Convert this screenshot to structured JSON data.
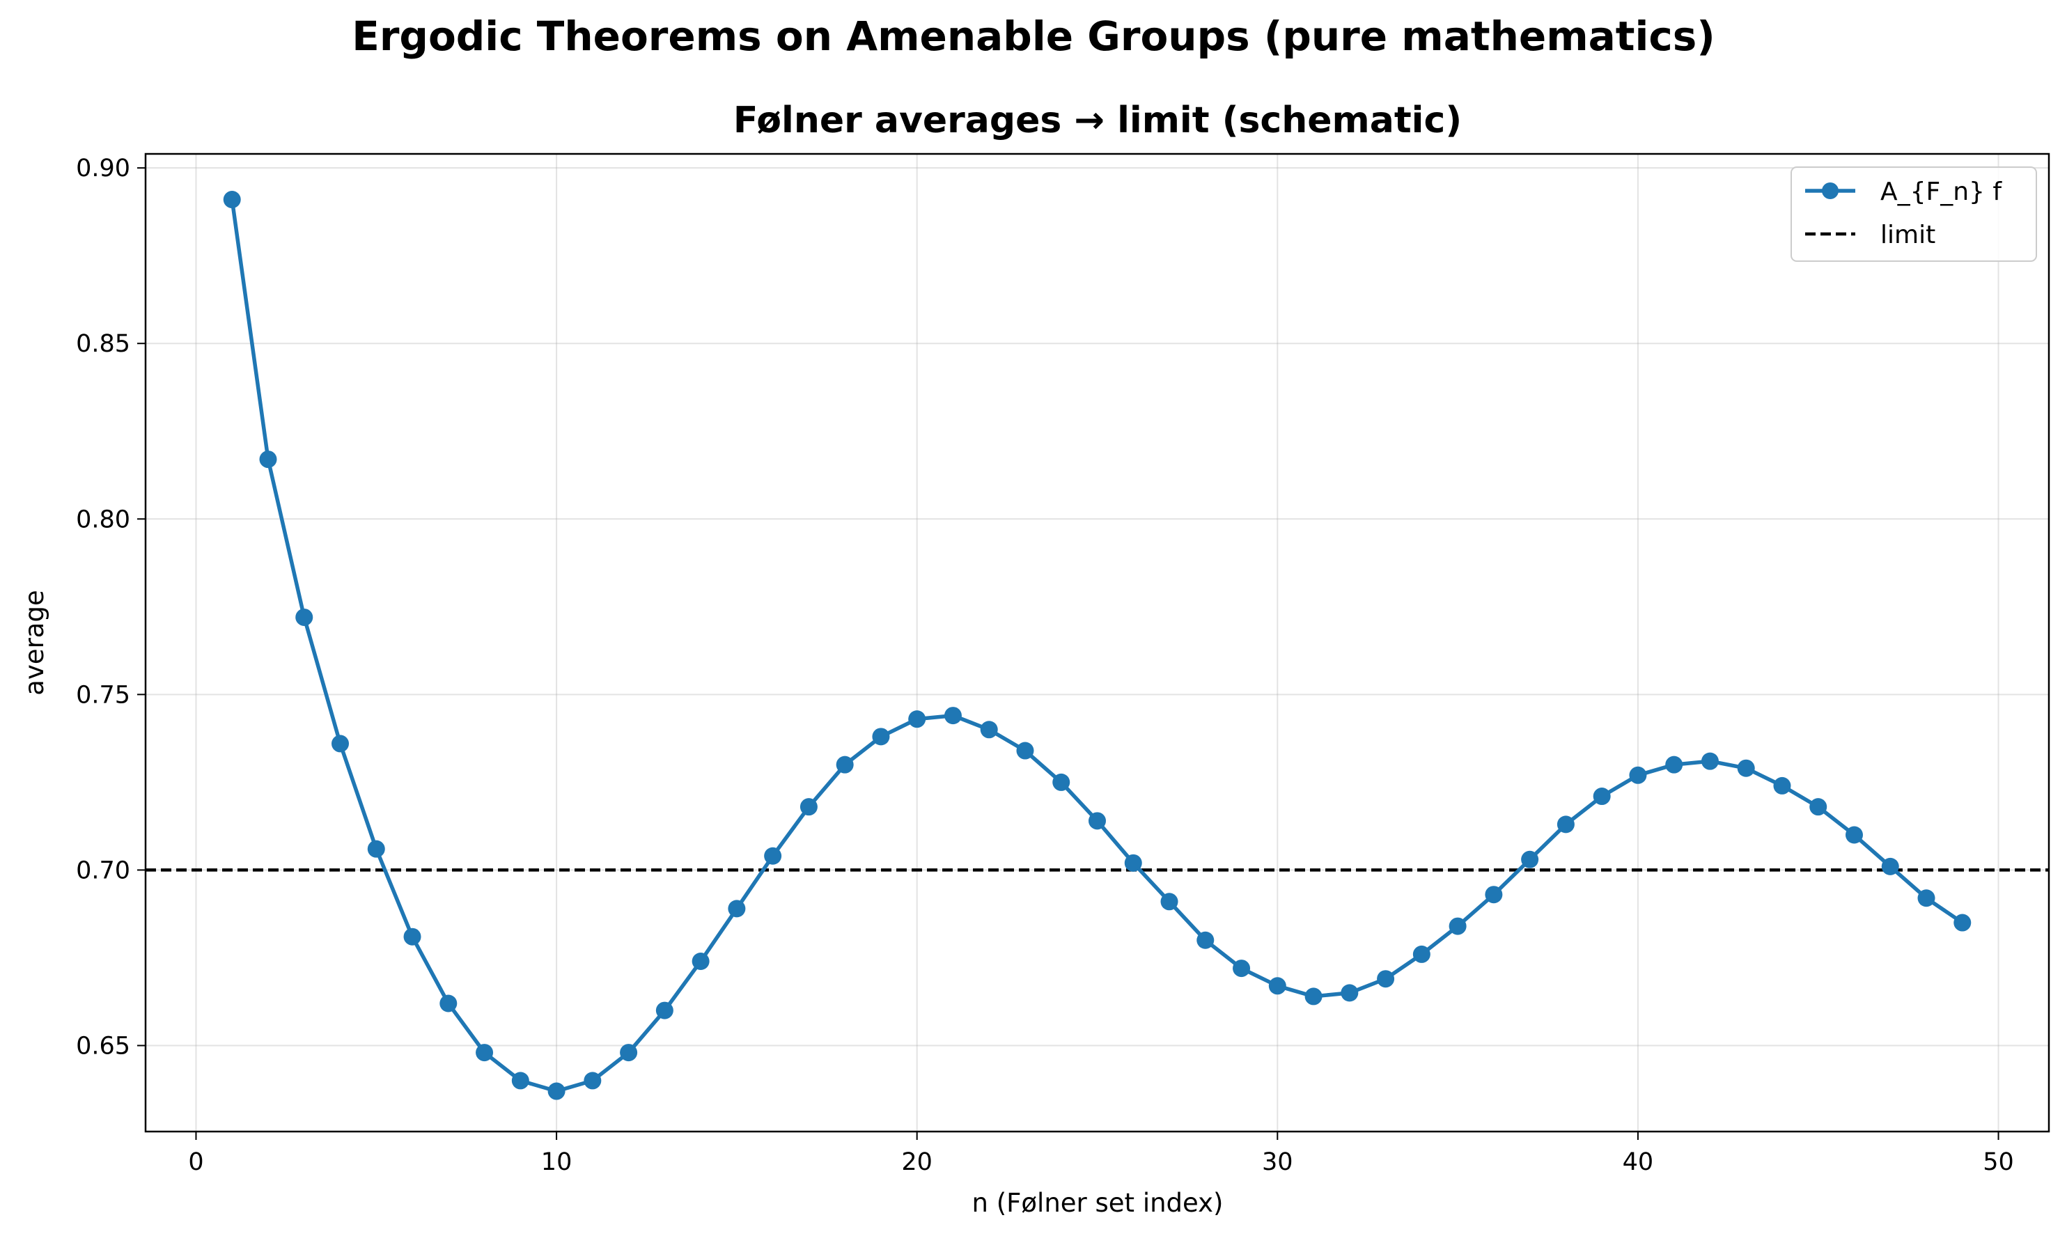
{
  "suptitle": "Ergodic Theorems on Amenable Groups (pure mathematics)",
  "chart_data": {
    "type": "line",
    "title": "Følner averages → limit (schematic)",
    "xlabel": "n (Følner set index)",
    "ylabel": "average",
    "xlim": [
      -1.4,
      51.4
    ],
    "ylim": [
      0.6255,
      0.904
    ],
    "x_ticks": [
      0,
      10,
      20,
      30,
      40,
      50
    ],
    "y_ticks": [
      0.65,
      0.7,
      0.75,
      0.8,
      0.85,
      0.9
    ],
    "y_tick_labels": [
      "0.65",
      "0.70",
      "0.75",
      "0.80",
      "0.85",
      "0.90"
    ],
    "grid": true,
    "legend_position": "top-right",
    "series": [
      {
        "name": "A_{F_n} f",
        "style": "solid line with circle markers",
        "color": "#1f77b4",
        "x": [
          1,
          2,
          3,
          4,
          5,
          6,
          7,
          8,
          9,
          10,
          11,
          12,
          13,
          14,
          15,
          16,
          17,
          18,
          19,
          20,
          21,
          22,
          23,
          24,
          25,
          26,
          27,
          28,
          29,
          30,
          31,
          32,
          33,
          34,
          35,
          36,
          37,
          38,
          39,
          40,
          41,
          42,
          43,
          44,
          45,
          46,
          47,
          48,
          49
        ],
        "y": [
          0.891,
          0.817,
          0.772,
          0.736,
          0.706,
          0.681,
          0.662,
          0.648,
          0.64,
          0.637,
          0.64,
          0.648,
          0.66,
          0.674,
          0.689,
          0.704,
          0.718,
          0.73,
          0.738,
          0.743,
          0.744,
          0.74,
          0.734,
          0.725,
          0.714,
          0.702,
          0.691,
          0.68,
          0.672,
          0.667,
          0.664,
          0.665,
          0.669,
          0.676,
          0.684,
          0.693,
          0.703,
          0.713,
          0.721,
          0.727,
          0.73,
          0.731,
          0.729,
          0.724,
          0.718,
          0.71,
          0.701,
          0.692,
          0.685
        ]
      },
      {
        "name": "limit",
        "style": "dashed horizontal line",
        "color": "#000000",
        "y": 0.7
      }
    ]
  }
}
